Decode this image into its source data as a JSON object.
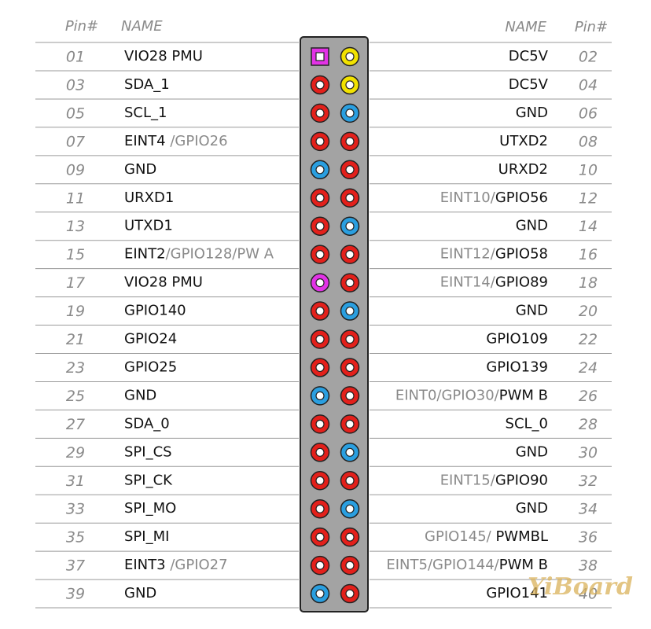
{
  "header": {
    "left_pin": "Pin#",
    "left_name": "NAME",
    "right_name": "NAME",
    "right_pin": "Pin#"
  },
  "rows": [
    {
      "left": {
        "pin": "01",
        "color": "magenta",
        "shape": "square",
        "name": [
          {
            "text": "VIO28 PMU",
            "muted": false
          }
        ]
      },
      "right": {
        "pin": "02",
        "color": "yellow",
        "shape": "circle",
        "name": [
          {
            "text": "DC5V",
            "muted": false
          }
        ]
      }
    },
    {
      "left": {
        "pin": "03",
        "color": "red",
        "shape": "circle",
        "name": [
          {
            "text": "SDA_1",
            "muted": false
          }
        ]
      },
      "right": {
        "pin": "04",
        "color": "yellow",
        "shape": "circle",
        "name": [
          {
            "text": "DC5V",
            "muted": false
          }
        ]
      }
    },
    {
      "left": {
        "pin": "05",
        "color": "red",
        "shape": "circle",
        "name": [
          {
            "text": "SCL_1",
            "muted": false
          }
        ]
      },
      "right": {
        "pin": "06",
        "color": "blue",
        "shape": "circle",
        "name": [
          {
            "text": "GND",
            "muted": false
          }
        ]
      }
    },
    {
      "left": {
        "pin": "07",
        "color": "red",
        "shape": "circle",
        "name": [
          {
            "text": "EINT4 ",
            "muted": false
          },
          {
            "text": "/GPIO26",
            "muted": true
          }
        ]
      },
      "right": {
        "pin": "08",
        "color": "red",
        "shape": "circle",
        "name": [
          {
            "text": "UTXD2",
            "muted": false
          }
        ]
      }
    },
    {
      "left": {
        "pin": "09",
        "color": "blue",
        "shape": "circle",
        "name": [
          {
            "text": "GND",
            "muted": false
          }
        ]
      },
      "right": {
        "pin": "10",
        "color": "red",
        "shape": "circle",
        "name": [
          {
            "text": "URXD2",
            "muted": false
          }
        ]
      }
    },
    {
      "left": {
        "pin": "11",
        "color": "red",
        "shape": "circle",
        "name": [
          {
            "text": "URXD1",
            "muted": false
          }
        ]
      },
      "right": {
        "pin": "12",
        "color": "red",
        "shape": "circle",
        "name": [
          {
            "text": "EINT10/",
            "muted": true
          },
          {
            "text": "GPIO56",
            "muted": false
          }
        ]
      }
    },
    {
      "left": {
        "pin": "13",
        "color": "red",
        "shape": "circle",
        "name": [
          {
            "text": "UTXD1",
            "muted": false
          }
        ]
      },
      "right": {
        "pin": "14",
        "color": "blue",
        "shape": "circle",
        "name": [
          {
            "text": "GND",
            "muted": false
          }
        ]
      }
    },
    {
      "left": {
        "pin": "15",
        "color": "red",
        "shape": "circle",
        "name": [
          {
            "text": "EINT2",
            "muted": false
          },
          {
            "text": "/GPIO128/PW A",
            "muted": true
          }
        ]
      },
      "right": {
        "pin": "16",
        "color": "red",
        "shape": "circle",
        "name": [
          {
            "text": "EINT12/",
            "muted": true
          },
          {
            "text": "GPIO58",
            "muted": false
          }
        ]
      }
    },
    {
      "left": {
        "pin": "17",
        "color": "magenta",
        "shape": "circle",
        "name": [
          {
            "text": "VIO28 PMU",
            "muted": false
          }
        ]
      },
      "right": {
        "pin": "18",
        "color": "red",
        "shape": "circle",
        "name": [
          {
            "text": "EINT14/",
            "muted": true
          },
          {
            "text": "GPIO89",
            "muted": false
          }
        ]
      }
    },
    {
      "left": {
        "pin": "19",
        "color": "red",
        "shape": "circle",
        "name": [
          {
            "text": "GPIO140",
            "muted": false
          }
        ]
      },
      "right": {
        "pin": "20",
        "color": "blue",
        "shape": "circle",
        "name": [
          {
            "text": "GND",
            "muted": false
          }
        ]
      }
    },
    {
      "left": {
        "pin": "21",
        "color": "red",
        "shape": "circle",
        "name": [
          {
            "text": "GPIO24",
            "muted": false
          }
        ]
      },
      "right": {
        "pin": "22",
        "color": "red",
        "shape": "circle",
        "name": [
          {
            "text": "GPIO109",
            "muted": false
          }
        ]
      }
    },
    {
      "left": {
        "pin": "23",
        "color": "red",
        "shape": "circle",
        "name": [
          {
            "text": "GPIO25",
            "muted": false
          }
        ]
      },
      "right": {
        "pin": "24",
        "color": "red",
        "shape": "circle",
        "name": [
          {
            "text": "GPIO139",
            "muted": false
          }
        ]
      }
    },
    {
      "left": {
        "pin": "25",
        "color": "blue",
        "shape": "circle",
        "name": [
          {
            "text": "GND",
            "muted": false
          }
        ]
      },
      "right": {
        "pin": "26",
        "color": "red",
        "shape": "circle",
        "name": [
          {
            "text": "EINT0/GPIO30/",
            "muted": true
          },
          {
            "text": "PWM B",
            "muted": false
          }
        ]
      }
    },
    {
      "left": {
        "pin": "27",
        "color": "red",
        "shape": "circle",
        "name": [
          {
            "text": "SDA_0",
            "muted": false
          }
        ]
      },
      "right": {
        "pin": "28",
        "color": "red",
        "shape": "circle",
        "name": [
          {
            "text": "SCL_0",
            "muted": false
          }
        ]
      }
    },
    {
      "left": {
        "pin": "29",
        "color": "red",
        "shape": "circle",
        "name": [
          {
            "text": "SPI_CS",
            "muted": false
          }
        ]
      },
      "right": {
        "pin": "30",
        "color": "blue",
        "shape": "circle",
        "name": [
          {
            "text": "GND",
            "muted": false
          }
        ]
      }
    },
    {
      "left": {
        "pin": "31",
        "color": "red",
        "shape": "circle",
        "name": [
          {
            "text": "SPI_CK",
            "muted": false
          }
        ]
      },
      "right": {
        "pin": "32",
        "color": "red",
        "shape": "circle",
        "name": [
          {
            "text": "EINT15/",
            "muted": true
          },
          {
            "text": "GPIO90",
            "muted": false
          }
        ]
      }
    },
    {
      "left": {
        "pin": "33",
        "color": "red",
        "shape": "circle",
        "name": [
          {
            "text": "SPI_MO",
            "muted": false
          }
        ]
      },
      "right": {
        "pin": "34",
        "color": "blue",
        "shape": "circle",
        "name": [
          {
            "text": "GND",
            "muted": false
          }
        ]
      }
    },
    {
      "left": {
        "pin": "35",
        "color": "red",
        "shape": "circle",
        "name": [
          {
            "text": "SPI_MI",
            "muted": false
          }
        ]
      },
      "right": {
        "pin": "36",
        "color": "red",
        "shape": "circle",
        "name": [
          {
            "text": "GPIO145/",
            "muted": true
          },
          {
            "text": " PWMBL",
            "muted": false
          }
        ]
      }
    },
    {
      "left": {
        "pin": "37",
        "color": "red",
        "shape": "circle",
        "name": [
          {
            "text": "EINT3 ",
            "muted": false
          },
          {
            "text": "/GPIO27",
            "muted": true
          }
        ]
      },
      "right": {
        "pin": "38",
        "color": "red",
        "shape": "circle",
        "name": [
          {
            "text": "EINT5/GPIO144/",
            "muted": true
          },
          {
            "text": "PWM B",
            "muted": false
          }
        ]
      }
    },
    {
      "left": {
        "pin": "39",
        "color": "blue",
        "shape": "circle",
        "name": [
          {
            "text": "GND",
            "muted": false
          }
        ]
      },
      "right": {
        "pin": "40",
        "color": "red",
        "shape": "circle",
        "name": [
          {
            "text": "GPIO141",
            "muted": false
          }
        ]
      }
    }
  ],
  "watermark": "YiBoard"
}
